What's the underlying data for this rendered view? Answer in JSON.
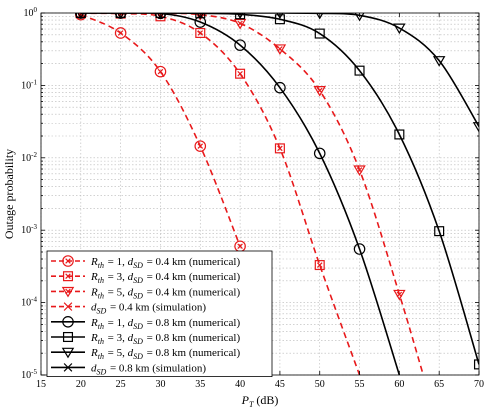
{
  "chart_data": {
    "type": "line",
    "xlabel": "P_T (dB)",
    "ylabel": "Outage probability",
    "x_ticks": [
      "15",
      "20",
      "25",
      "30",
      "35",
      "40",
      "45",
      "50",
      "55",
      "60",
      "65",
      "70"
    ],
    "y_tick_labels": [
      "10^0",
      "10^-1",
      "10^-2",
      "10^-3",
      "10^-4",
      "10^-5"
    ],
    "xlim": [
      15,
      70
    ],
    "ylim": [
      1e-05,
      1
    ],
    "yscale": "log",
    "grid": true,
    "legend_position": "lower-left",
    "colors": {
      "d04": "#e8191b",
      "d08": "#000000"
    },
    "series": [
      {
        "name": "R_th = 1, d_SD = 0.4 km (numerical)",
        "marker": "circle-x",
        "style": "dashed",
        "group": "d04",
        "x": [
          20,
          25,
          30,
          35,
          40
        ],
        "y": [
          0.95,
          0.53,
          0.155,
          0.0145,
          0.0006
        ]
      },
      {
        "name": "R_th = 3, d_SD = 0.4 km (numerical)",
        "marker": "square-x",
        "style": "dashed",
        "group": "d04",
        "x": [
          20,
          25,
          30,
          35,
          40,
          45,
          50,
          55
        ],
        "y": [
          0.99,
          0.98,
          0.9,
          0.53,
          0.145,
          0.0135,
          0.00033,
          1e-05
        ]
      },
      {
        "name": "R_th = 5, d_SD = 0.4 km (numerical)",
        "marker": "triangle-x",
        "style": "dashed",
        "group": "d04",
        "x": [
          20,
          25,
          30,
          35,
          40,
          45,
          50,
          55,
          60,
          63
        ],
        "y": [
          1,
          1,
          0.99,
          0.95,
          0.72,
          0.32,
          0.085,
          0.0068,
          0.00013,
          1e-05
        ]
      },
      {
        "name": "d_SD = 0.4 km (simulation)",
        "marker": "x",
        "style": "dashed",
        "group": "d04",
        "x": [],
        "y": []
      },
      {
        "name": "R_th = 1, d_SD = 0.8 km (numerical)",
        "marker": "circle",
        "style": "solid",
        "group": "d08",
        "x": [
          20,
          25,
          30,
          35,
          40,
          45,
          50,
          55,
          60
        ],
        "y": [
          1,
          1,
          0.99,
          0.75,
          0.36,
          0.093,
          0.0115,
          0.00055,
          1e-05
        ]
      },
      {
        "name": "R_th = 3, d_SD = 0.8 km (numerical)",
        "marker": "square",
        "style": "solid",
        "group": "d08",
        "x": [
          20,
          25,
          30,
          35,
          40,
          45,
          50,
          55,
          60,
          65,
          70
        ],
        "y": [
          1,
          1,
          1,
          0.99,
          0.96,
          0.82,
          0.52,
          0.16,
          0.021,
          0.00097,
          1.4e-05
        ]
      },
      {
        "name": "R_th = 5, d_SD = 0.8 km (numerical)",
        "marker": "triangle",
        "style": "solid",
        "group": "d08",
        "x": [
          20,
          25,
          30,
          35,
          40,
          45,
          50,
          55,
          60,
          65,
          70
        ],
        "y": [
          1,
          1,
          1,
          1,
          1,
          1,
          0.99,
          0.93,
          0.62,
          0.22,
          0.027
        ]
      },
      {
        "name": "d_SD = 0.8 km (simulation)",
        "marker": "x",
        "style": "solid",
        "group": "d08",
        "x": [],
        "y": []
      }
    ],
    "legend": [
      {
        "label": "R_th = 1, d_SD = 0.4 km (numerical)",
        "series": 0
      },
      {
        "label": "R_th = 3, d_SD = 0.4 km (numerical)",
        "series": 1
      },
      {
        "label": "R_th = 5, d_SD = 0.4 km (numerical)",
        "series": 2
      },
      {
        "label": "d_SD = 0.4 km (simulation)",
        "series": 3
      },
      {
        "label": "R_th = 1, d_SD = 0.8 km (numerical)",
        "series": 4
      },
      {
        "label": "R_th = 3, d_SD = 0.8 km (numerical)",
        "series": 5
      },
      {
        "label": "R_th = 5, d_SD = 0.8 km (numerical)",
        "series": 6
      },
      {
        "label": "d_SD = 0.8 km (simulation)",
        "series": 7
      }
    ]
  }
}
